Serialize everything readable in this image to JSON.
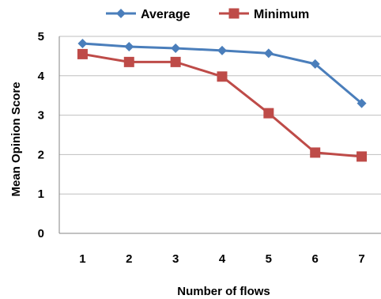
{
  "chart_data": {
    "type": "line",
    "x": [
      1,
      2,
      3,
      4,
      5,
      6,
      7
    ],
    "series": [
      {
        "name": "Average",
        "values": [
          4.82,
          4.74,
          4.7,
          4.64,
          4.57,
          4.3,
          3.3
        ],
        "color": "#4a7ebb",
        "marker": "diamond"
      },
      {
        "name": "Minimum",
        "values": [
          4.55,
          4.35,
          4.35,
          3.98,
          3.05,
          2.05,
          1.95
        ],
        "color": "#be4b48",
        "marker": "square"
      }
    ],
    "xlabel": "Number of flows",
    "ylabel": "Mean Opinion Score",
    "ylim": [
      0,
      5
    ],
    "yticks": [
      0,
      1,
      2,
      3,
      4,
      5
    ],
    "xticks": [
      1,
      2,
      3,
      4,
      5,
      6,
      7
    ],
    "grid": "horizontal",
    "legend": "top"
  }
}
